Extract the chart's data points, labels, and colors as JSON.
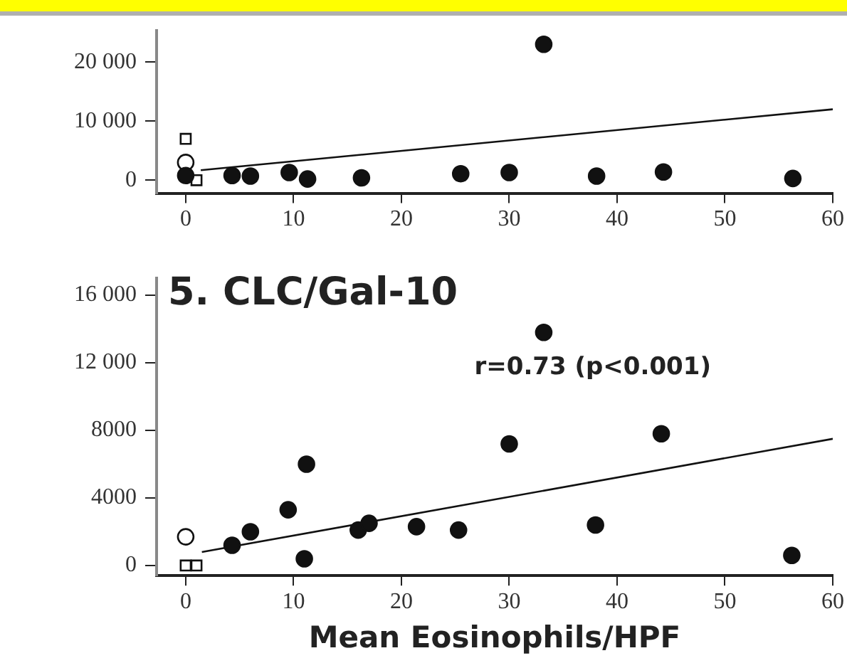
{
  "chart_data": [
    {
      "type": "scatter",
      "xlim": [
        -2.7,
        60
      ],
      "xticks": [
        0,
        10,
        20,
        30,
        40,
        50,
        60
      ],
      "ylim": [
        -2200,
        25300
      ],
      "yticks": [
        0,
        {
          "value": 10000,
          "label": "10 000"
        },
        {
          "value": 20000,
          "label": "20 000"
        }
      ],
      "grid": false,
      "legend": false,
      "series": [
        {
          "marker": "circle",
          "color": "#111111",
          "x": [
            33.2,
            4.3,
            6,
            9.6,
            11.3,
            16.3,
            25.5,
            30,
            38.1,
            44.3,
            56.3,
            0
          ],
          "values": [
            23000,
            800,
            700,
            1300,
            200,
            400,
            1100,
            1300,
            700,
            1400,
            300,
            800
          ]
        },
        {
          "marker": "circle",
          "color": "#ffffff",
          "x": [
            0
          ],
          "values": [
            3000
          ]
        },
        {
          "marker": "square",
          "color": "#ffffff",
          "x": [
            0,
            1
          ],
          "values": [
            7000,
            0
          ]
        },
        {
          "type": "line",
          "marker": "none",
          "color": "#111111",
          "x": [
            1.4,
            60
          ],
          "values": [
            1700,
            12000
          ]
        }
      ]
    },
    {
      "type": "scatter",
      "title": "5. CLC/Gal-10",
      "xlabel": "Mean Eosinophils/HPF",
      "xlim": [
        -2.7,
        60
      ],
      "xticks": [
        0,
        10,
        20,
        30,
        40,
        50,
        60
      ],
      "ylim": [
        -600,
        17000
      ],
      "yticks": [
        0,
        4000,
        8000,
        {
          "value": 12000,
          "label": "12 000"
        },
        {
          "value": 16000,
          "label": "16 000"
        }
      ],
      "grid": false,
      "legend": false,
      "annotations": [
        "r=0.73 (p<0.001)"
      ],
      "series": [
        {
          "marker": "circle",
          "color": "#111111",
          "x": [
            33.2,
            44.1,
            30,
            11.2,
            9.5,
            6,
            4.3,
            16,
            17,
            21.4,
            25.3,
            38,
            11,
            56.2
          ],
          "values": [
            13800,
            7800,
            7200,
            6000,
            3300,
            2000,
            1200,
            2100,
            2500,
            2300,
            2100,
            2400,
            400,
            600
          ]
        },
        {
          "marker": "circle",
          "color": "#ffffff",
          "x": [
            0
          ],
          "values": [
            1700
          ]
        },
        {
          "marker": "square",
          "color": "#ffffff",
          "x": [
            0,
            1
          ],
          "values": [
            0,
            0
          ]
        },
        {
          "type": "line",
          "marker": "none",
          "color": "#111111",
          "x": [
            1.5,
            60
          ],
          "values": [
            800,
            7500
          ]
        }
      ]
    }
  ]
}
